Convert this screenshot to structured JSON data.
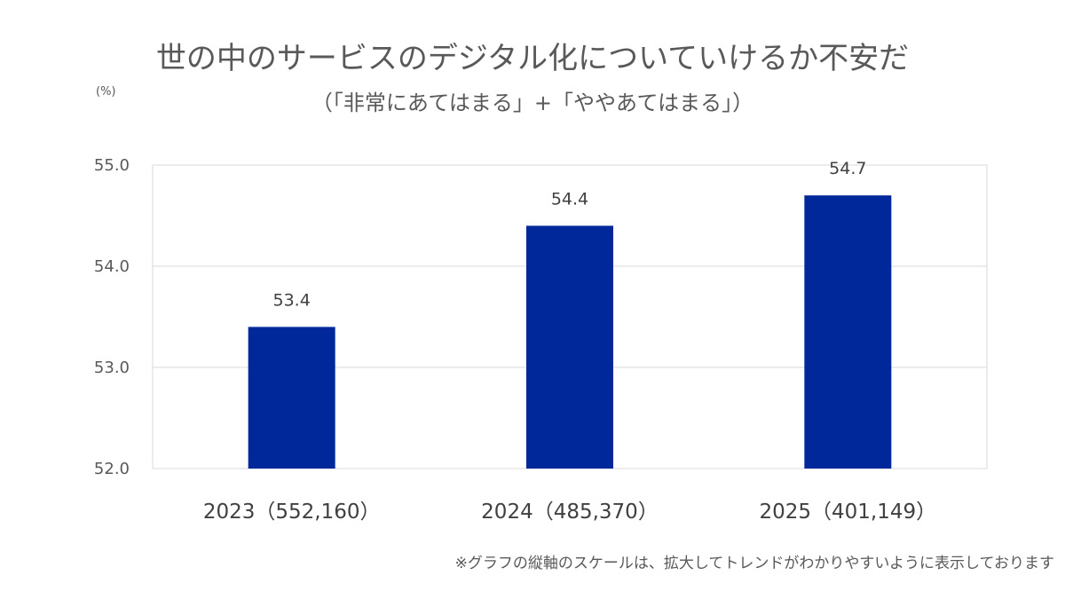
{
  "title": "世の中のサービスのデジタル化についていけるか不安だ",
  "subtitle": "（「非常にあてはまる」+「ややあてはまる」）",
  "unit": "(%)",
  "footnote": "※グラフの縦軸のスケールは、拡大してトレンドがわかりやすいように表示しております",
  "chart_data": {
    "type": "bar",
    "categories": [
      "2023（552,160）",
      "2024（485,370）",
      "2025（401,149）"
    ],
    "values": [
      53.4,
      54.4,
      54.7
    ],
    "data_labels": [
      "53.4",
      "54.4",
      "54.7"
    ],
    "ylim": [
      52.0,
      55.0
    ],
    "yticks": [
      "52.0",
      "53.0",
      "54.0",
      "55.0"
    ],
    "grid": true,
    "bar_color": "#00289A",
    "grid_color": "#D9D9D9"
  }
}
